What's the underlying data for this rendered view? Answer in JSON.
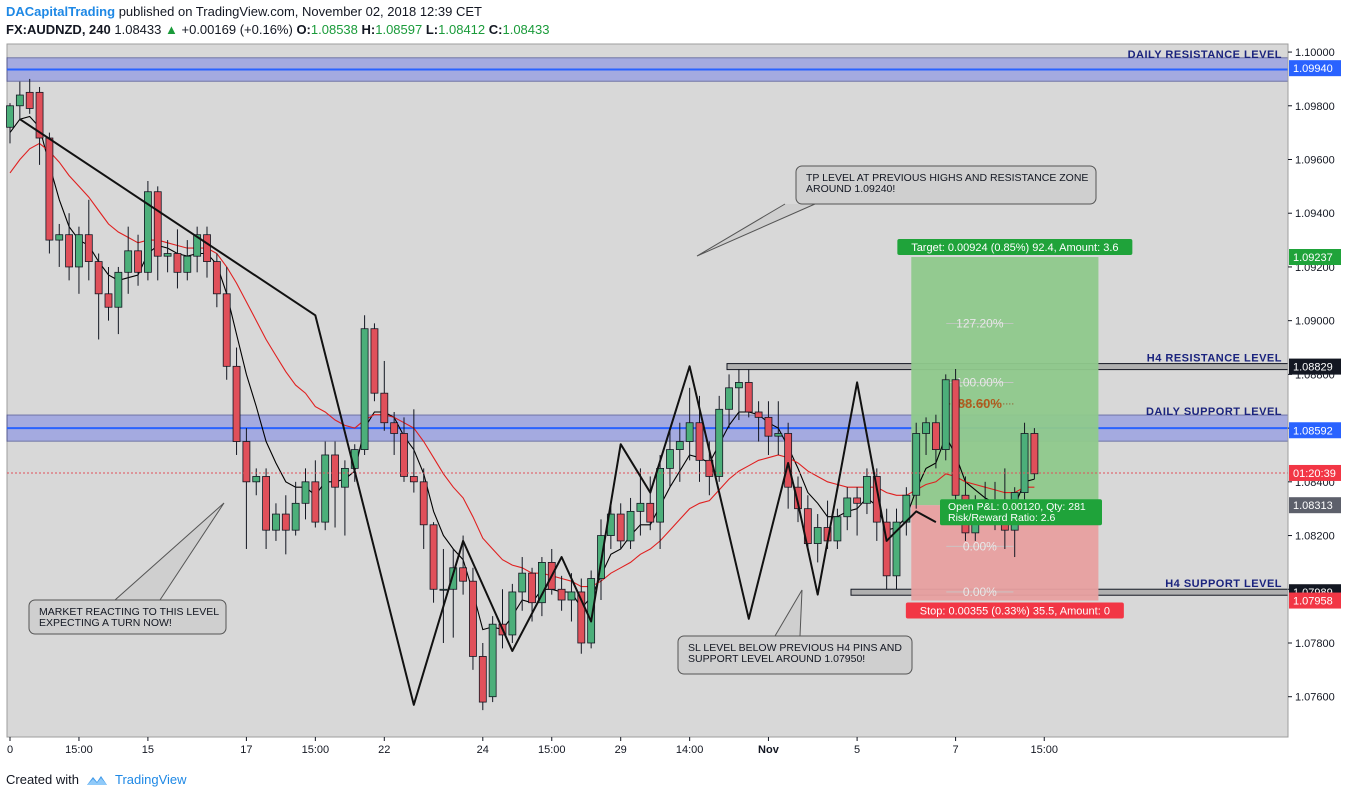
{
  "header": {
    "author": "DACapitalTrading",
    "published_text": "published on TradingView.com, November 02, 2018 12:39 CET",
    "symbol": "FX:AUDNZD, 240",
    "last": "1.08433",
    "change": "+0.00169 (+0.16%)",
    "open_label": "O:",
    "open": "1.08538",
    "high_label": "H:",
    "high": "1.08597",
    "low_label": "L:",
    "low": "1.08412",
    "close_label": "C:",
    "close": "1.08433"
  },
  "footer": {
    "created_with": "Created with",
    "brand": "TradingView"
  },
  "colors": {
    "background": "#d8d8d8",
    "bull": "#4caf7a",
    "bear": "#e0505a",
    "zone_fill": "#7b86e8",
    "target_fill": "#8fc98c",
    "stop_fill": "#e8a0a0",
    "ema_fast": "#000000",
    "ema_slow": "#e02020"
  },
  "chart_data": {
    "type": "candlestick",
    "y_range": [
      1.0745,
      1.1003
    ],
    "price_ticks": [
      "1.10000",
      "1.09800",
      "1.09600",
      "1.09400",
      "1.09200",
      "1.09000",
      "1.08800",
      "1.08600",
      "1.08400",
      "1.08200",
      "1.08000",
      "1.07800",
      "1.07600"
    ],
    "time_labels": [
      {
        "label": "0",
        "i": 0
      },
      {
        "label": "15:00",
        "i": 7
      },
      {
        "label": "15",
        "i": 14
      },
      {
        "label": "17",
        "i": 24
      },
      {
        "label": "15:00",
        "i": 31
      },
      {
        "label": "22",
        "i": 38
      },
      {
        "label": "24",
        "i": 48
      },
      {
        "label": "15:00",
        "i": 55
      },
      {
        "label": "29",
        "i": 62
      },
      {
        "label": "14:00",
        "i": 69
      },
      {
        "label": "Nov",
        "i": 77
      },
      {
        "label": "5",
        "i": 86
      },
      {
        "label": "7",
        "i": 96
      },
      {
        "label": "15:00",
        "i": 105
      }
    ],
    "candles": [
      [
        1.0972,
        1.0981,
        1.0966,
        1.098
      ],
      [
        1.098,
        1.0989,
        1.0975,
        1.0984
      ],
      [
        1.0985,
        1.099,
        1.0977,
        1.0979
      ],
      [
        1.0985,
        1.0987,
        1.0958,
        1.0968
      ],
      [
        1.0968,
        1.097,
        1.0925,
        1.093
      ],
      [
        1.093,
        1.0936,
        1.092,
        1.0932
      ],
      [
        1.0932,
        1.094,
        1.0915,
        1.092
      ],
      [
        1.092,
        1.0935,
        1.091,
        1.0932
      ],
      [
        1.0932,
        1.0945,
        1.0915,
        1.0922
      ],
      [
        1.0922,
        1.0925,
        1.0893,
        1.091
      ],
      [
        1.091,
        1.092,
        1.09,
        1.0905
      ],
      [
        1.0905,
        1.092,
        1.0895,
        1.0918
      ],
      [
        1.0918,
        1.0935,
        1.091,
        1.0926
      ],
      [
        1.0926,
        1.0932,
        1.0913,
        1.0918
      ],
      [
        1.0918,
        1.0952,
        1.0915,
        1.0948
      ],
      [
        1.0948,
        1.095,
        1.0915,
        1.0924
      ],
      [
        1.0924,
        1.093,
        1.0918,
        1.0925
      ],
      [
        1.0925,
        1.0934,
        1.0912,
        1.0918
      ],
      [
        1.0918,
        1.093,
        1.0915,
        1.0924
      ],
      [
        1.0924,
        1.0935,
        1.0918,
        1.0932
      ],
      [
        1.0932,
        1.0935,
        1.0916,
        1.0922
      ],
      [
        1.0922,
        1.0925,
        1.0905,
        1.091
      ],
      [
        1.091,
        1.092,
        1.0878,
        1.0883
      ],
      [
        1.0883,
        1.089,
        1.085,
        1.0855
      ],
      [
        1.0855,
        1.086,
        1.0815,
        1.084
      ],
      [
        1.084,
        1.0845,
        1.0835,
        1.0842
      ],
      [
        1.0842,
        1.0845,
        1.0815,
        1.0822
      ],
      [
        1.0822,
        1.0832,
        1.0818,
        1.0828
      ],
      [
        1.0828,
        1.0835,
        1.0813,
        1.0822
      ],
      [
        1.0822,
        1.084,
        1.082,
        1.0832
      ],
      [
        1.0832,
        1.0845,
        1.0826,
        1.084
      ],
      [
        1.084,
        1.0848,
        1.0823,
        1.0825
      ],
      [
        1.0825,
        1.0855,
        1.0822,
        1.085
      ],
      [
        1.085,
        1.0855,
        1.0823,
        1.0838
      ],
      [
        1.0838,
        1.0848,
        1.082,
        1.0845
      ],
      [
        1.0845,
        1.0854,
        1.084,
        1.0852
      ],
      [
        1.0852,
        1.0902,
        1.085,
        1.0897
      ],
      [
        1.0897,
        1.0899,
        1.087,
        1.0873
      ],
      [
        1.0873,
        1.0885,
        1.0859,
        1.0862
      ],
      [
        1.0862,
        1.0866,
        1.085,
        1.0858
      ],
      [
        1.0858,
        1.0864,
        1.084,
        1.0842
      ],
      [
        1.0842,
        1.0867,
        1.0836,
        1.084
      ],
      [
        1.084,
        1.0845,
        1.0815,
        1.0824
      ],
      [
        1.0824,
        1.0825,
        1.0795,
        1.08
      ],
      [
        1.08,
        1.0815,
        1.078,
        1.08
      ],
      [
        1.08,
        1.0815,
        1.0782,
        1.0808
      ],
      [
        1.0808,
        1.082,
        1.0798,
        1.0803
      ],
      [
        1.0803,
        1.0808,
        1.077,
        1.0775
      ],
      [
        1.0775,
        1.078,
        1.0755,
        1.0758
      ],
      [
        1.076,
        1.079,
        1.0758,
        1.0787
      ],
      [
        1.0787,
        1.08,
        1.0778,
        1.0783
      ],
      [
        1.0783,
        1.0802,
        1.078,
        1.0799
      ],
      [
        1.0799,
        1.0812,
        1.0792,
        1.0806
      ],
      [
        1.0806,
        1.0808,
        1.0788,
        1.0795
      ],
      [
        1.0795,
        1.0812,
        1.079,
        1.081
      ],
      [
        1.081,
        1.0815,
        1.0798,
        1.08
      ],
      [
        1.08,
        1.0805,
        1.0792,
        1.0796
      ],
      [
        1.0796,
        1.0806,
        1.0788,
        1.0799
      ],
      [
        1.0799,
        1.0804,
        1.0776,
        1.078
      ],
      [
        1.078,
        1.0807,
        1.0778,
        1.0804
      ],
      [
        1.0804,
        1.0826,
        1.0796,
        1.082
      ],
      [
        1.082,
        1.0831,
        1.0815,
        1.0828
      ],
      [
        1.0828,
        1.0832,
        1.0815,
        1.0818
      ],
      [
        1.0818,
        1.0834,
        1.0815,
        1.0829
      ],
      [
        1.0829,
        1.0845,
        1.082,
        1.0832
      ],
      [
        1.0832,
        1.0842,
        1.0822,
        1.0825
      ],
      [
        1.0825,
        1.085,
        1.0815,
        1.0845
      ],
      [
        1.0845,
        1.086,
        1.0838,
        1.0852
      ],
      [
        1.0852,
        1.0862,
        1.084,
        1.0855
      ],
      [
        1.0855,
        1.0875,
        1.0848,
        1.0862
      ],
      [
        1.0862,
        1.0872,
        1.084,
        1.0848
      ],
      [
        1.0848,
        1.0855,
        1.0835,
        1.0842
      ],
      [
        1.0842,
        1.0872,
        1.084,
        1.0867
      ],
      [
        1.0867,
        1.088,
        1.086,
        1.0875
      ],
      [
        1.0875,
        1.0882,
        1.0863,
        1.0877
      ],
      [
        1.0877,
        1.0882,
        1.0864,
        1.0866
      ],
      [
        1.0866,
        1.087,
        1.0855,
        1.0864
      ],
      [
        1.0864,
        1.087,
        1.085,
        1.0857
      ],
      [
        1.0857,
        1.087,
        1.085,
        1.0858
      ],
      [
        1.0858,
        1.0862,
        1.083,
        1.0838
      ],
      [
        1.0838,
        1.0842,
        1.0825,
        1.083
      ],
      [
        1.083,
        1.0835,
        1.0815,
        1.0817
      ],
      [
        1.0817,
        1.0828,
        1.081,
        1.0823
      ],
      [
        1.0823,
        1.0833,
        1.0815,
        1.0818
      ],
      [
        1.0818,
        1.083,
        1.0815,
        1.0827
      ],
      [
        1.0827,
        1.0838,
        1.0822,
        1.0834
      ],
      [
        1.0834,
        1.0838,
        1.082,
        1.0832
      ],
      [
        1.0832,
        1.0845,
        1.0828,
        1.0842
      ],
      [
        1.0842,
        1.0845,
        1.0818,
        1.0825
      ],
      [
        1.0825,
        1.083,
        1.08,
        1.0805
      ],
      [
        1.0805,
        1.083,
        1.08,
        1.0825
      ],
      [
        1.0825,
        1.0838,
        1.082,
        1.0835
      ],
      [
        1.0835,
        1.0862,
        1.083,
        1.0858
      ],
      [
        1.0858,
        1.0864,
        1.085,
        1.0862
      ],
      [
        1.0862,
        1.0865,
        1.0845,
        1.0852
      ],
      [
        1.0852,
        1.088,
        1.0848,
        1.0878
      ],
      [
        1.0878,
        1.0882,
        1.083,
        1.0835
      ],
      [
        1.0835,
        1.0842,
        1.0818,
        1.0821
      ],
      [
        1.0821,
        1.0835,
        1.0818,
        1.083
      ],
      [
        1.083,
        1.084,
        1.0825,
        1.0827
      ],
      [
        1.0827,
        1.084,
        1.0822,
        1.0828
      ],
      [
        1.0828,
        1.0845,
        1.0815,
        1.0822
      ],
      [
        1.0822,
        1.0838,
        1.0812,
        1.0836
      ],
      [
        1.0836,
        1.0862,
        1.0832,
        1.0858
      ],
      [
        1.0858,
        1.086,
        1.0841,
        1.0843
      ]
    ],
    "series": [
      {
        "name": "",
        "color_key": "ema_fast",
        "values": [
          1.097,
          1.0975,
          1.0976,
          1.0972,
          1.0958,
          1.0945,
          1.0935,
          1.093,
          1.0928,
          1.0922,
          1.0917,
          1.0915,
          1.0916,
          1.0917,
          1.0925,
          1.0928,
          1.0927,
          1.0925,
          1.0924,
          1.0925,
          1.0925,
          1.0921,
          1.091,
          1.0895,
          1.088,
          1.0868,
          1.0855,
          1.0847,
          1.084,
          1.0838,
          1.0838,
          1.0835,
          1.084,
          1.084,
          1.0841,
          1.0844,
          1.086,
          1.0866,
          1.0866,
          1.0864,
          1.0857,
          1.0852,
          1.0843,
          1.0829,
          1.082,
          1.0815,
          1.0811,
          1.0799,
          1.0785,
          1.0786,
          1.0785,
          1.079,
          1.0796,
          1.0795,
          1.08,
          1.08,
          1.0799,
          1.0799,
          1.0793,
          1.0797,
          1.0805,
          1.0813,
          1.0815,
          1.082,
          1.0824,
          1.0824,
          1.0831,
          1.0838,
          1.0844,
          1.085,
          1.0849,
          1.0847,
          1.0854,
          1.0861,
          1.0866,
          1.0866,
          1.0865,
          1.0862,
          1.086,
          1.0853,
          1.0845,
          1.0836,
          1.0832,
          1.0827,
          1.0827,
          1.0829,
          1.083,
          1.0834,
          1.0831,
          1.0822,
          1.0823,
          1.0827,
          1.0837,
          1.0845,
          1.0847,
          1.0857,
          1.085,
          1.084,
          1.0837,
          1.0834,
          1.0832,
          1.0829,
          1.0831,
          1.084,
          1.0841
        ]
      },
      {
        "name": "",
        "color_key": "ema_slow",
        "values": [
          1.0955,
          1.096,
          1.0964,
          1.0966,
          1.0963,
          1.0959,
          1.0954,
          1.095,
          1.0946,
          1.0941,
          1.0936,
          1.0933,
          1.0931,
          1.0929,
          1.093,
          1.093,
          1.0929,
          1.0928,
          1.0927,
          1.0927,
          1.0927,
          1.0925,
          1.092,
          1.0914,
          1.0907,
          1.09,
          1.0893,
          1.0887,
          1.0881,
          1.0876,
          1.0873,
          1.0868,
          1.0866,
          1.0863,
          1.0861,
          1.086,
          1.0863,
          1.0865,
          1.0865,
          1.0864,
          1.0862,
          1.086,
          1.0855,
          1.0849,
          1.0843,
          1.0838,
          1.0834,
          1.0827,
          1.0819,
          1.0815,
          1.0811,
          1.0809,
          1.0808,
          1.0806,
          1.0806,
          1.0805,
          1.0804,
          1.0803,
          1.0801,
          1.0801,
          1.0803,
          1.0806,
          1.0808,
          1.081,
          1.0813,
          1.0815,
          1.0818,
          1.0822,
          1.0826,
          1.083,
          1.0832,
          1.0833,
          1.0837,
          1.0841,
          1.0844,
          1.0846,
          1.0848,
          1.0849,
          1.085,
          1.0849,
          1.0847,
          1.0844,
          1.0842,
          1.084,
          1.0839,
          1.0838,
          1.0838,
          1.0838,
          1.0838,
          1.0836,
          1.0835,
          1.0835,
          1.0837,
          1.0839,
          1.084,
          1.0843,
          1.0842,
          1.084,
          1.0839,
          1.0838,
          1.0837,
          1.0836,
          1.0836,
          1.0838,
          1.0838
        ]
      }
    ],
    "zigzag": [
      [
        1,
        1.0975
      ],
      [
        31,
        1.0902
      ],
      [
        41,
        1.0757
      ],
      [
        46,
        1.0818
      ],
      [
        51,
        1.0777
      ],
      [
        56,
        1.0812
      ],
      [
        59,
        1.0788
      ],
      [
        62,
        1.0854
      ],
      [
        65,
        1.0836
      ],
      [
        69,
        1.0883
      ],
      [
        75,
        1.0789
      ],
      [
        79,
        1.0847
      ],
      [
        80,
        1.0832
      ],
      [
        82,
        1.0798
      ],
      [
        86,
        1.0877
      ],
      [
        89,
        1.0818
      ],
      [
        92,
        1.0829
      ],
      [
        94,
        1.0825
      ]
    ],
    "zones": [
      {
        "label": "DAILY RESISTANCE LEVEL",
        "top": 1.0996,
        "bottom": 1.0991,
        "band": true,
        "price_tag": "1.09940",
        "tag_color": "#2962ff",
        "tag_text_color": "#ffffff"
      },
      {
        "label": "H4 RESISTANCE LEVEL",
        "top": 1.08829,
        "bottom": 1.08825,
        "band": false,
        "price_tag": "1.08829",
        "tag_color": "#131722",
        "tag_text_color": "#ffffff"
      },
      {
        "label": "DAILY SUPPORT LEVEL",
        "top": 1.0863,
        "bottom": 1.0857,
        "band": true,
        "price_tag": "1.08592",
        "tag_color": "#2962ff",
        "tag_text_color": "#ffffff"
      },
      {
        "label": "H4 SUPPORT LEVEL",
        "top": 1.07989,
        "bottom": 1.07982,
        "band": false,
        "price_tag": "1.07989",
        "tag_color": "#131722",
        "tag_text_color": "#ffffff"
      }
    ],
    "position": {
      "entry": 1.08313,
      "target": 1.09237,
      "stop": 1.07958,
      "start_i": 91.5,
      "end_i": 110.5,
      "target_label": "Target: 0.00924 (0.85%) 92.4, Amount: 3.6",
      "stop_label": "Stop: 0.00355 (0.33%) 35.5, Amount: 0",
      "open_label": "Open P&L: 0.00120, Qty: 281",
      "rr_label": "Risk/Reward Ratio: 2.6",
      "entry_tag": "1.08313",
      "target_tag": "1.09237",
      "stop_tag": "1.07958"
    },
    "fib_labels": [
      {
        "label": "127.20%",
        "value": 1.0899
      },
      {
        "label": "100.00%",
        "value": 1.0877
      },
      {
        "label": "88.60%",
        "value": 1.0869,
        "highlight": true
      },
      {
        "label": "0.00%",
        "value": 1.0816
      },
      {
        "label": "0.00%",
        "value": 1.0799
      }
    ],
    "current_price": {
      "value": 1.08433,
      "countdown": "01:20:39"
    },
    "annotations": [
      {
        "lines": [
          "TP LEVEL AT PREVIOUS HIGHS AND RESISTANCE ZONE",
          "AROUND 1.09240!"
        ]
      },
      {
        "lines": [
          "MARKET REACTING TO THIS LEVEL",
          "EXPECTING A TURN NOW!"
        ]
      },
      {
        "lines": [
          "SL LEVEL BELOW PREVIOUS H4 PINS AND",
          "SUPPORT LEVEL AROUND 1.07950!"
        ]
      }
    ]
  }
}
